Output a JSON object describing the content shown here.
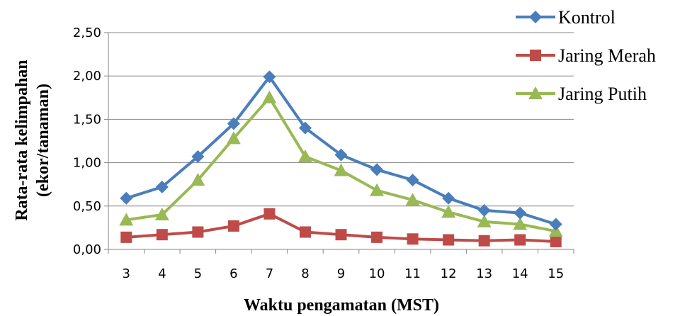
{
  "chart_data": {
    "type": "line",
    "categories": [
      "3",
      "4",
      "5",
      "6",
      "7",
      "8",
      "9",
      "10",
      "11",
      "12",
      "13",
      "14",
      "15"
    ],
    "xlabel": "Waktu pengamatan (MST)",
    "ylabel_line1": "Rata-rata  kelimpahan",
    "ylabel_line2": "(ekor/tanaman)",
    "ylim": [
      0,
      2.5
    ],
    "yticks": [
      "0,00",
      "0,50",
      "1,00",
      "1,50",
      "2,00",
      "2,50"
    ],
    "legend_position": "top-right",
    "series": [
      {
        "name": "Kontrol",
        "color": "#4a7ebb",
        "marker": "diamond",
        "values": [
          0.59,
          0.72,
          1.07,
          1.45,
          1.99,
          1.4,
          1.09,
          0.92,
          0.8,
          0.59,
          0.45,
          0.42,
          0.29
        ]
      },
      {
        "name": "Jaring Merah",
        "color": "#be4b48",
        "marker": "square",
        "values": [
          0.14,
          0.17,
          0.2,
          0.27,
          0.41,
          0.2,
          0.17,
          0.14,
          0.12,
          0.11,
          0.1,
          0.11,
          0.09
        ]
      },
      {
        "name": "Jaring Putih",
        "color": "#98b954",
        "marker": "triangle",
        "values": [
          0.34,
          0.4,
          0.8,
          1.28,
          1.75,
          1.07,
          0.91,
          0.68,
          0.57,
          0.43,
          0.32,
          0.29,
          0.21
        ]
      }
    ]
  }
}
